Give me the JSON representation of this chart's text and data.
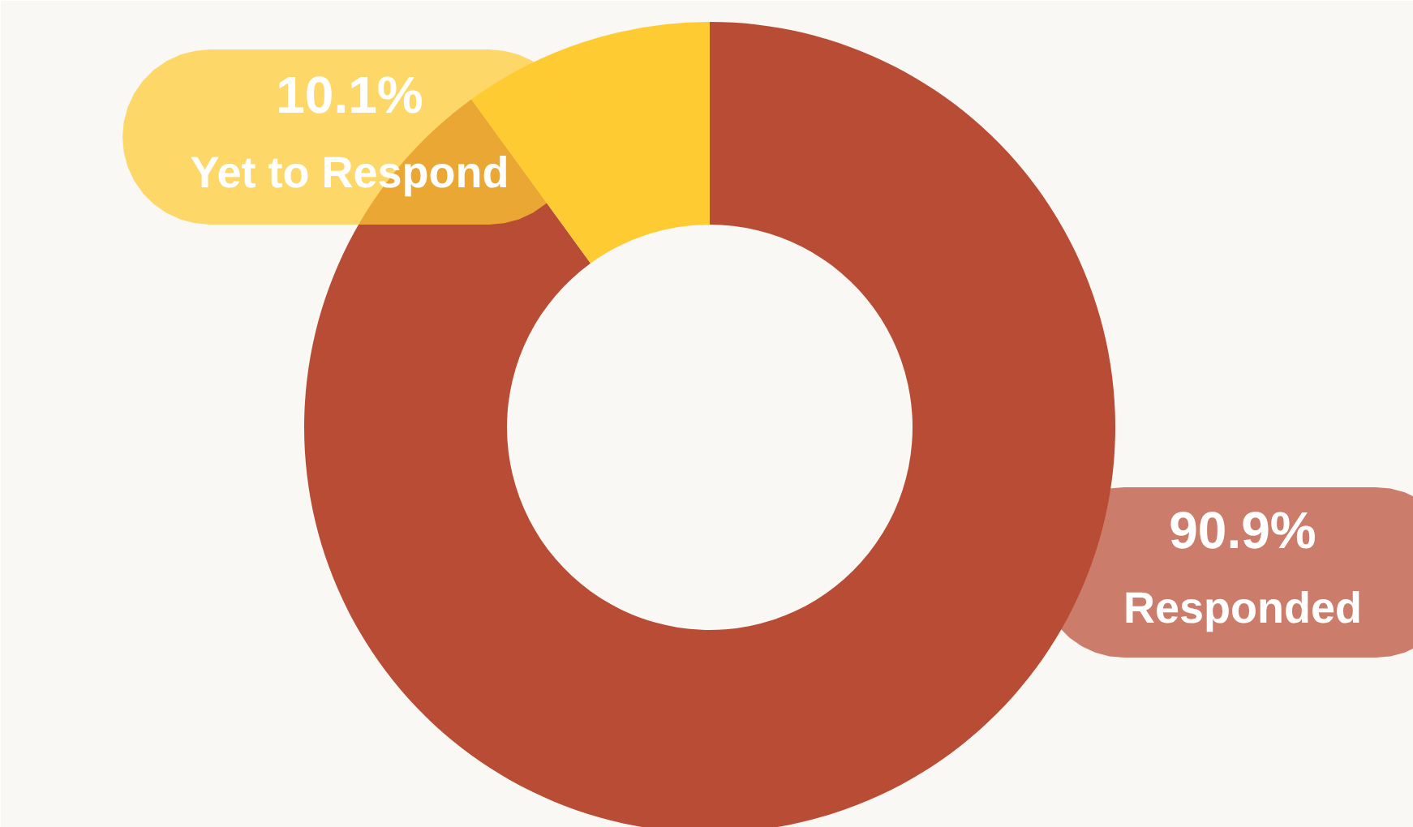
{
  "chart_data": {
    "type": "donut",
    "categories": [
      "Responded",
      "Yet to Respond"
    ],
    "values": [
      90.9,
      10.1
    ],
    "colors": [
      "#b84c35",
      "#ffcb33"
    ],
    "value_labels": [
      "90.9%",
      "10.1%"
    ]
  }
}
